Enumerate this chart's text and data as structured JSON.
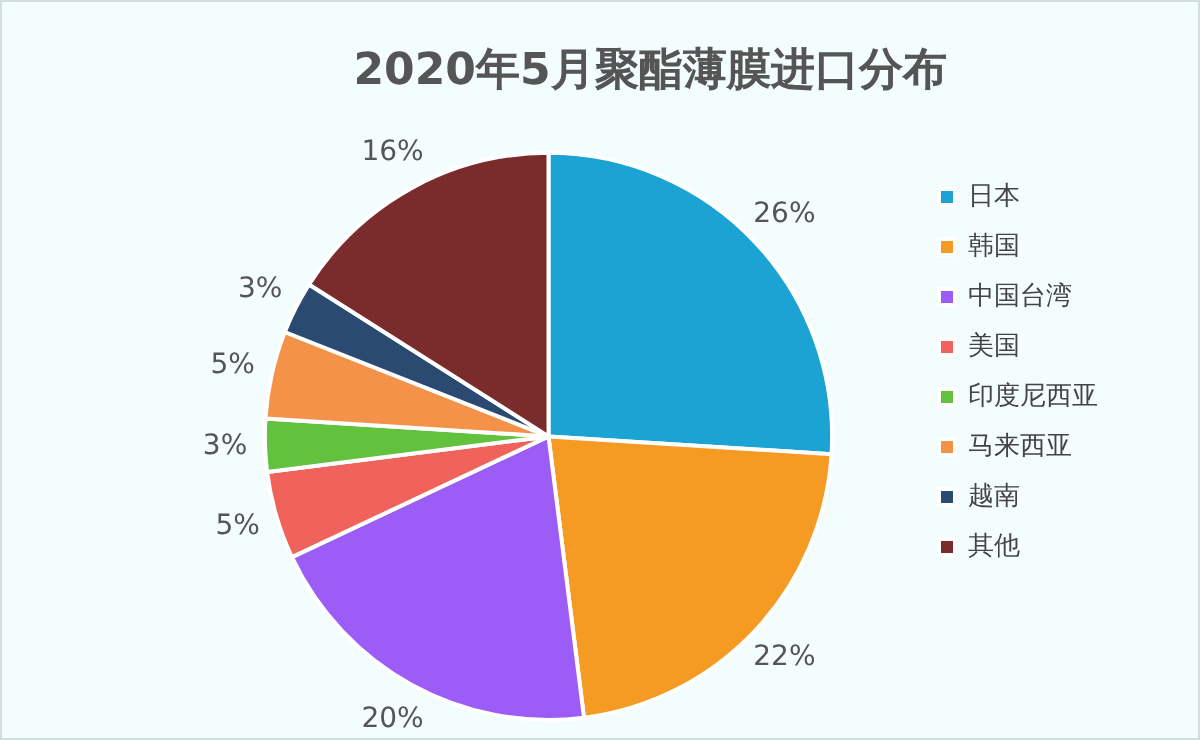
{
  "chart_data": {
    "type": "pie",
    "title": "2020年5月聚酯薄膜进口分布",
    "categories": [
      "日本",
      "韩国",
      "中国台湾",
      "美国",
      "印度尼西亚",
      "马来西亚",
      "越南",
      "其他"
    ],
    "values": [
      26,
      22,
      20,
      5,
      3,
      5,
      3,
      16
    ],
    "value_labels": [
      "26%",
      "22%",
      "20%",
      "5%",
      "3%",
      "5%",
      "3%",
      "16%"
    ],
    "colors": [
      "#1ba3d4",
      "#f59a22",
      "#9c5cf6",
      "#f0625c",
      "#62c23e",
      "#f5924a",
      "#2b4a72",
      "#7a2b2b"
    ],
    "legend": "right"
  }
}
